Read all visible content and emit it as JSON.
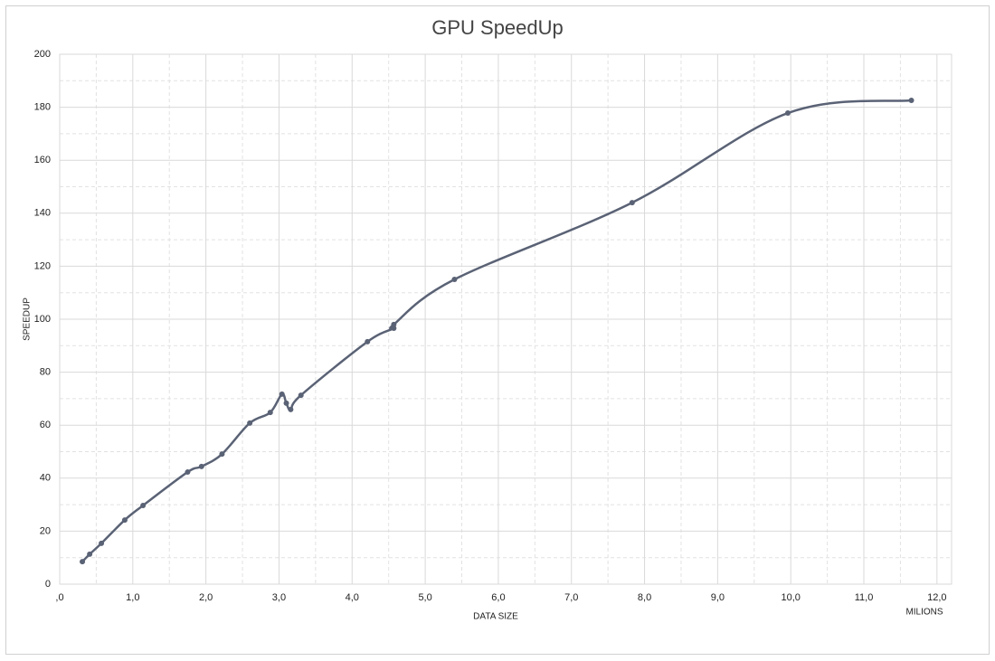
{
  "chart_data": {
    "type": "line",
    "title": "GPU SpeedUp",
    "x_label": "DATA SIZE",
    "x_unit": "MILIONS",
    "y_label": "SPEEDUP",
    "xlim": [
      0,
      12.2
    ],
    "ylim": [
      0,
      200
    ],
    "xticks": [
      {
        "value": 0,
        "label": ",0"
      },
      {
        "value": 1,
        "label": "1,0"
      },
      {
        "value": 2,
        "label": "2,0"
      },
      {
        "value": 3,
        "label": "3,0"
      },
      {
        "value": 4,
        "label": "4,0"
      },
      {
        "value": 5,
        "label": "5,0"
      },
      {
        "value": 6,
        "label": "6,0"
      },
      {
        "value": 7,
        "label": "7,0"
      },
      {
        "value": 8,
        "label": "8,0"
      },
      {
        "value": 9,
        "label": "9,0"
      },
      {
        "value": 10,
        "label": "10,0"
      },
      {
        "value": 11,
        "label": "11,0"
      },
      {
        "value": 12,
        "label": "12,0"
      }
    ],
    "yticks": [
      0,
      20,
      40,
      60,
      80,
      100,
      120,
      140,
      160,
      180,
      200
    ],
    "grid": true,
    "minor_grid": true,
    "smooth": true,
    "x": [
      0.31,
      0.41,
      0.57,
      0.89,
      1.14,
      1.75,
      1.94,
      2.22,
      2.6,
      2.88,
      3.04,
      3.1,
      3.16,
      3.3,
      4.21,
      4.57,
      4.57,
      5.4,
      7.83,
      9.96,
      11.65
    ],
    "series": [
      {
        "color": "#5a6275",
        "values": [
          8.5,
          11.3,
          15.4,
          24.2,
          29.7,
          42.3,
          44.4,
          49.1,
          60.8,
          64.8,
          71.7,
          68.3,
          65.9,
          71.3,
          91.5,
          96.6,
          98.0,
          115.0,
          144.0,
          177.8,
          182.6
        ]
      }
    ]
  }
}
